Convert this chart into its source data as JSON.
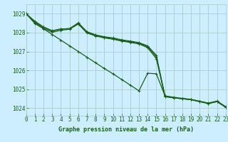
{
  "title": "Graphe pression niveau de la mer (hPa)",
  "background_color": "#cceeff",
  "grid_color": "#aacccc",
  "line_color": "#1a5e1a",
  "xlim": [
    0,
    23
  ],
  "ylim": [
    1023.6,
    1029.5
  ],
  "yticks": [
    1024,
    1025,
    1026,
    1027,
    1028,
    1029
  ],
  "xticks": [
    0,
    1,
    2,
    3,
    4,
    5,
    6,
    7,
    8,
    9,
    10,
    11,
    12,
    13,
    14,
    15,
    16,
    17,
    18,
    19,
    20,
    21,
    22,
    23
  ],
  "series": [
    [
      1029.0,
      1028.6,
      1028.3,
      1028.1,
      1028.2,
      1028.2,
      1028.52,
      1028.05,
      1027.88,
      1027.78,
      1027.72,
      1027.62,
      1027.55,
      1027.47,
      1027.3,
      1026.8,
      1024.6,
      1024.55,
      1024.5,
      1024.45,
      1024.35,
      1024.25,
      1024.35,
      1024.05
    ],
    [
      1029.0,
      1028.55,
      1028.28,
      1028.08,
      1028.18,
      1028.22,
      1028.48,
      1028.02,
      1027.85,
      1027.75,
      1027.68,
      1027.58,
      1027.52,
      1027.44,
      1027.25,
      1026.72,
      1024.65,
      1024.58,
      1024.52,
      1024.47,
      1024.37,
      1024.27,
      1024.38,
      1024.08
    ],
    [
      1029.0,
      1028.5,
      1028.22,
      1028.02,
      1028.12,
      1028.18,
      1028.45,
      1027.98,
      1027.82,
      1027.72,
      1027.65,
      1027.55,
      1027.48,
      1027.4,
      1027.2,
      1026.62,
      1024.62,
      1024.55,
      1024.5,
      1024.45,
      1024.35,
      1024.25,
      1024.35,
      1024.05
    ],
    [
      1029.0,
      1028.48,
      1028.2,
      1027.9,
      1027.6,
      1027.3,
      1027.0,
      1026.7,
      1026.4,
      1026.1,
      1025.82,
      1025.52,
      1025.22,
      1024.92,
      1025.85,
      1025.82,
      1024.65,
      1024.55,
      1024.5,
      1024.45,
      1024.35,
      1024.25,
      1024.35,
      1024.05
    ]
  ]
}
